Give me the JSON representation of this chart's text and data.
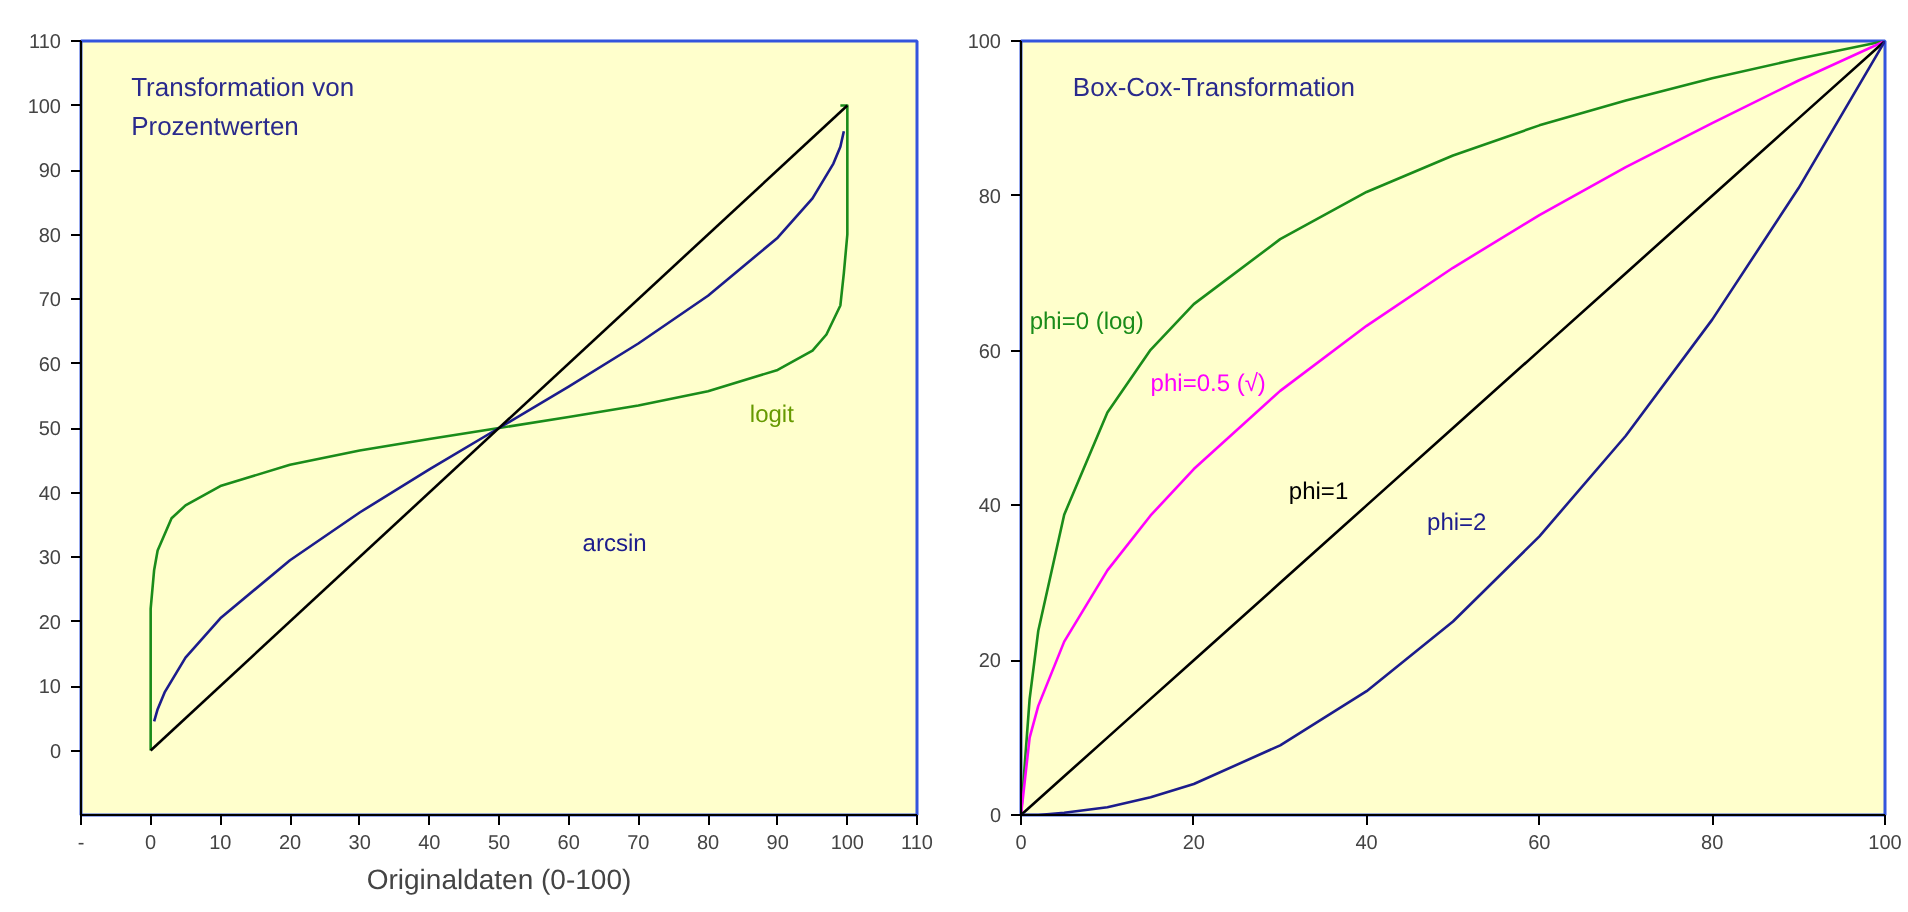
{
  "chart_data": [
    {
      "type": "line",
      "title": "Transformation von\nProzentwerten",
      "xlabel": "Originaldaten (0-100)",
      "xlim": [
        -10,
        110
      ],
      "ylim": [
        -10,
        110
      ],
      "xticks": [
        {
          "value": -10,
          "label": "-"
        },
        0,
        10,
        20,
        30,
        40,
        50,
        60,
        70,
        80,
        90,
        100,
        110
      ],
      "yticks": [
        0,
        10,
        20,
        30,
        40,
        50,
        60,
        70,
        80,
        90,
        100,
        110
      ],
      "series": [
        {
          "color": "#1a8c1a",
          "x": [
            0,
            0,
            0.5,
            1,
            3,
            5,
            10,
            20,
            30,
            40,
            50,
            60,
            70,
            80,
            90,
            95,
            97,
            99,
            99.5,
            100,
            100,
            99
          ],
          "values": [
            0,
            22,
            28,
            31,
            36,
            38,
            41,
            44.3,
            46.5,
            48.3,
            50,
            51.7,
            53.5,
            55.7,
            59,
            62,
            64.5,
            69,
            74,
            80,
            100,
            100
          ]
        },
        {
          "color": "#1c1c8c",
          "x": [
            0.5,
            1,
            2,
            5,
            10,
            20,
            30,
            40,
            50,
            60,
            70,
            80,
            90,
            95,
            98,
            99,
            99.5
          ],
          "values": [
            4.5,
            6.4,
            9,
            14.4,
            20.5,
            29.5,
            36.9,
            43.6,
            50,
            56.4,
            63.1,
            70.5,
            79.5,
            85.6,
            91,
            93.6,
            96
          ]
        },
        {
          "color": "#000000",
          "x": [
            0,
            100
          ],
          "values": [
            0,
            100
          ]
        }
      ],
      "annotations": [
        "logit",
        "arcsin"
      ],
      "grid": false
    },
    {
      "type": "line",
      "title": "Box-Cox-Transformation",
      "xlim": [
        0,
        100
      ],
      "ylim": [
        0,
        100
      ],
      "xticks": [
        0,
        20,
        40,
        60,
        80,
        100
      ],
      "yticks": [
        0,
        20,
        40,
        60,
        80,
        100
      ],
      "x": [
        0,
        1,
        2,
        5,
        10,
        15,
        20,
        30,
        40,
        50,
        60,
        70,
        80,
        90,
        100
      ],
      "series": [
        {
          "color": "#1a8c1a",
          "values": [
            0,
            15,
            23.8,
            38.8,
            52,
            60.1,
            66,
            74.4,
            80.5,
            85.2,
            89.1,
            92.3,
            95.2,
            97.7,
            100
          ]
        },
        {
          "color": "#ff00ff",
          "values": [
            0,
            10,
            14.1,
            22.4,
            31.6,
            38.7,
            44.7,
            54.8,
            63.2,
            70.7,
            77.5,
            83.7,
            89.4,
            94.9,
            100
          ]
        },
        {
          "color": "#000000",
          "values": [
            0,
            1,
            2,
            5,
            10,
            15,
            20,
            30,
            40,
            50,
            60,
            70,
            80,
            90,
            100
          ]
        },
        {
          "color": "#1c1c8c",
          "values": [
            0,
            0,
            0,
            0.3,
            1,
            2.3,
            4,
            9,
            16,
            25,
            36,
            49,
            64,
            81,
            100
          ]
        }
      ],
      "annotations": [
        "phi=0  (log)",
        "phi=0.5 (√)",
        "phi=1",
        "phi=2"
      ],
      "grid": false
    }
  ]
}
